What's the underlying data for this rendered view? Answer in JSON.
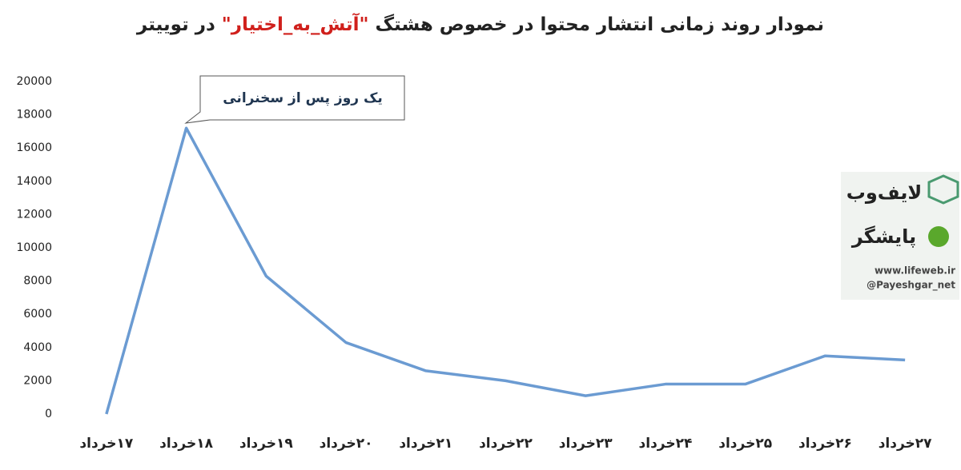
{
  "chart_data": {
    "type": "line",
    "title": "نمودار روند زمانی انتشار محتوا در خصوص هشتگ",
    "title_highlight": "\"آتش_به_اختیار\"",
    "title_end": "در توییتر",
    "categories": [
      "۱۷خرداد",
      "۱۸خرداد",
      "۱۹خرداد",
      "۲۰خرداد",
      "۲۱خرداد",
      "۲۲خرداد",
      "۲۳خرداد",
      "۲۴خرداد",
      "۲۵خرداد",
      "۲۶خرداد",
      "۲۷خرداد"
    ],
    "values": [
      0,
      17200,
      8300,
      4300,
      2600,
      2000,
      1100,
      1800,
      1800,
      3500,
      3250
    ],
    "color": "#6b9bd2",
    "ylim": [
      0,
      20000
    ],
    "yticks": [
      0,
      2000,
      4000,
      6000,
      8000,
      10000,
      12000,
      14000,
      16000,
      18000,
      20000
    ],
    "grid": false,
    "annotation": "یک روز پس از سخنرانی",
    "watermark": {
      "brand1": "لایف‌وب",
      "brand2": "پایشگر",
      "url": "www.lifeweb.ir",
      "handle": "@Payeshgar_net"
    }
  }
}
